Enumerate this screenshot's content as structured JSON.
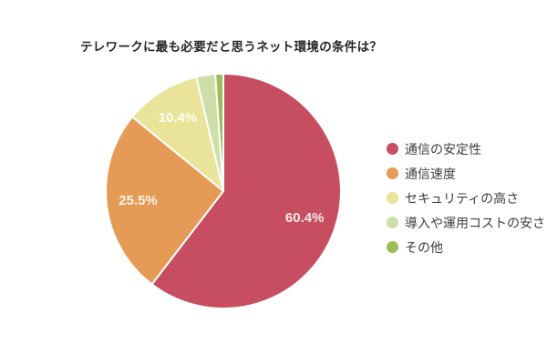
{
  "chart_data": {
    "type": "pie",
    "title": "テレワークに最も必要だと思うネット環境の条件は？",
    "direction": "clockwise",
    "start_angle": "12-oclock",
    "legend_position": "right",
    "slice_border_color": "#ffffff",
    "label_color": "#ffffff",
    "title_color": "#262626",
    "legend_text_color": "#3d3d3d",
    "background_color": "#ffffff",
    "slices": [
      {
        "name": "通信の安定性",
        "value": 60.4,
        "label": "60.4%",
        "color": "#C74E61"
      },
      {
        "name": "通信速度",
        "value": 25.5,
        "label": "25.5%",
        "color": "#E59B55"
      },
      {
        "name": "セキュリティの高さ",
        "value": 10.4,
        "label": "10.4%",
        "color": "#E9E49A"
      },
      {
        "name": "導入や運用コストの安さ",
        "value": 2.6,
        "label": "",
        "color": "#CDDFA8"
      },
      {
        "name": "その他",
        "value": 1.1,
        "label": "",
        "color": "#9EBD56"
      }
    ]
  }
}
